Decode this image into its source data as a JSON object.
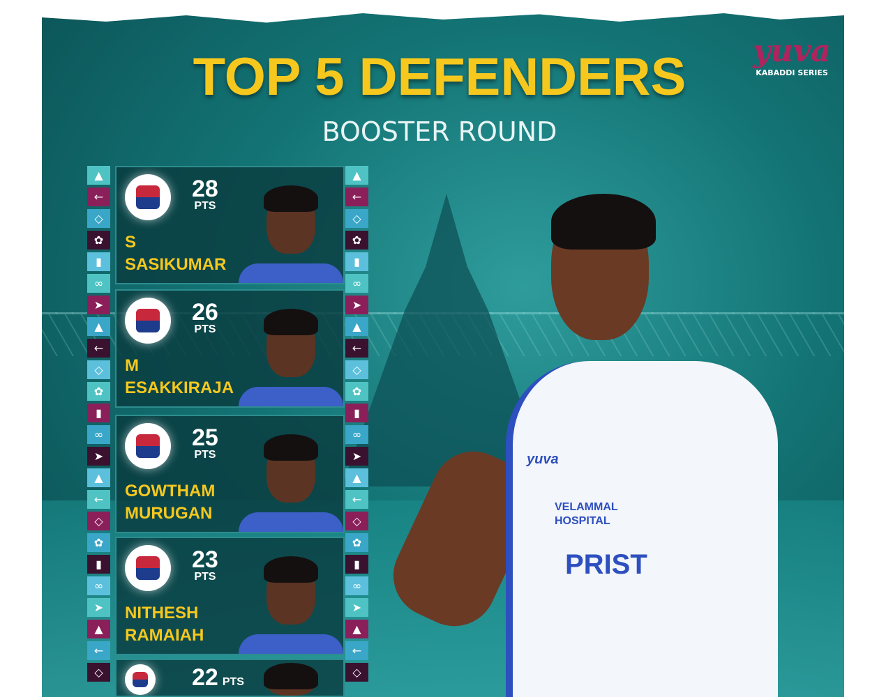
{
  "header": {
    "title": "TOP 5 DEFENDERS",
    "subtitle": "BOOSTER ROUND"
  },
  "logo": {
    "brand": "yuva",
    "series": "KABADDI SERIES"
  },
  "colors": {
    "title": "#f6c81e",
    "background": "#137374",
    "name": "#f6c81e"
  },
  "players": [
    {
      "points": "28",
      "unit": "PTS",
      "first": "S",
      "last": "SASIKUMAR"
    },
    {
      "points": "26",
      "unit": "PTS",
      "first": "M",
      "last": "ESAKKIRAJA"
    },
    {
      "points": "25",
      "unit": "PTS",
      "first": "GOWTHAM",
      "last": "MURUGAN"
    },
    {
      "points": "23",
      "unit": "PTS",
      "first": "NITHESH",
      "last": "RAMAIAH"
    },
    {
      "points": "22",
      "unit": "PTS",
      "first": "",
      "last": ""
    }
  ],
  "jersey": {
    "sponsor": "VELAMMAL HOSPITAL",
    "text": "PRIST",
    "brand": "yuva"
  }
}
